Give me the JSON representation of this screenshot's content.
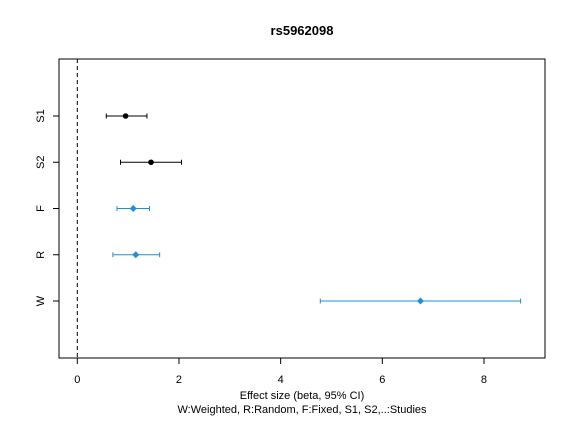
{
  "chart_data": {
    "type": "forest",
    "title": "rs5962098",
    "xlabel": "Effect size (beta, 95% CI)",
    "xlabel_sub": "W:Weighted, R:Random, F:Fixed, S1, S2,..:Studies",
    "xlim": [
      -0.36,
      9.2
    ],
    "xticks": [
      0,
      2,
      4,
      6,
      8
    ],
    "reference_line": 0,
    "rows": [
      {
        "label": "S1",
        "estimate": 0.95,
        "lower": 0.57,
        "upper": 1.37,
        "marker": "circle",
        "color": "#000000"
      },
      {
        "label": "S2",
        "estimate": 1.45,
        "lower": 0.85,
        "upper": 2.05,
        "marker": "circle",
        "color": "#000000"
      },
      {
        "label": "F",
        "estimate": 1.1,
        "lower": 0.78,
        "upper": 1.42,
        "marker": "diamond",
        "color": "#1f8fd6"
      },
      {
        "label": "R",
        "estimate": 1.15,
        "lower": 0.7,
        "upper": 1.62,
        "marker": "diamond",
        "color": "#1f8fd6"
      },
      {
        "label": "W",
        "estimate": 6.75,
        "lower": 4.78,
        "upper": 8.72,
        "marker": "diamond",
        "color": "#1f8fd6"
      }
    ]
  }
}
